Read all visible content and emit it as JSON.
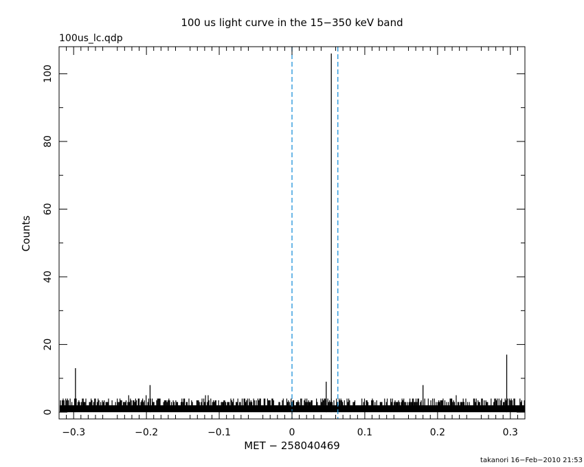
{
  "chart_data": {
    "type": "line",
    "title": "100 us light curve in the 15−350 keV band",
    "subtitle": "100us_lc.qdp",
    "xlabel": "MET − 258040469",
    "ylabel": "Counts",
    "xlim": [
      -0.32,
      0.32
    ],
    "ylim": [
      -2,
      108
    ],
    "x_ticks": [
      -0.3,
      -0.2,
      -0.1,
      0,
      0.1,
      0.2,
      0.3
    ],
    "x_tick_labels": [
      "−0.3",
      "−0.2",
      "−0.1",
      "0",
      "0.1",
      "0.2",
      "0.3"
    ],
    "y_ticks": [
      0,
      20,
      40,
      60,
      80,
      100
    ],
    "y_tick_labels": [
      "0",
      "20",
      "40",
      "60",
      "80",
      "100"
    ],
    "grid": false,
    "series_color": "#000000",
    "bin_width": 0.0001,
    "baseline_counts": 1,
    "noise_max_counts": 4,
    "peaks": [
      {
        "x": -0.2975,
        "y": 13
      },
      {
        "x": -0.195,
        "y": 8
      },
      {
        "x": 0.047,
        "y": 9
      },
      {
        "x": 0.054,
        "y": 106
      },
      {
        "x": 0.18,
        "y": 8
      },
      {
        "x": 0.295,
        "y": 17
      }
    ],
    "reference_lines": [
      {
        "x": 0.0,
        "color": "#1a8fd8",
        "style": "dashed"
      },
      {
        "x": 0.063,
        "color": "#1a8fd8",
        "style": "dashed"
      }
    ]
  },
  "footer": "takanori 16−Feb−2010 21:53"
}
